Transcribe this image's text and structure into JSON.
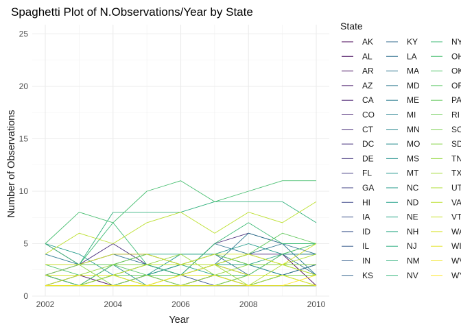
{
  "chart_data": {
    "type": "line",
    "title": "Spaghetti Plot of N.Observations/Year by State",
    "xlabel": "Year",
    "ylabel": "Number of Observations",
    "xlim": [
      2002,
      2010
    ],
    "ylim": [
      0,
      26
    ],
    "x_ticks": [
      2002,
      2004,
      2006,
      2008,
      2010
    ],
    "y_ticks": [
      0,
      5,
      10,
      15,
      20,
      25
    ],
    "grid": true,
    "legend_title": "State",
    "legend_position": "right",
    "colormap": "viridis",
    "x": [
      2002,
      2003,
      2004,
      2005,
      2006,
      2007,
      2008,
      2009,
      2010
    ],
    "series": [
      {
        "name": "AK",
        "values": [
          null,
          null,
          null,
          2,
          null,
          3,
          null,
          4,
          1
        ]
      },
      {
        "name": "AL",
        "values": [
          1,
          2,
          1,
          2,
          1,
          2,
          1,
          2,
          3
        ]
      },
      {
        "name": "AR",
        "values": [
          1,
          1,
          2,
          2,
          3,
          3,
          3,
          3,
          3
        ]
      },
      {
        "name": "AZ",
        "values": [
          2,
          1,
          3,
          3,
          2,
          3,
          2,
          2,
          3
        ]
      },
      {
        "name": "CA",
        "values": [
          1,
          1,
          1,
          1,
          1,
          1,
          1,
          1,
          1
        ]
      },
      {
        "name": "CO",
        "values": [
          2,
          3,
          4,
          4,
          3,
          3,
          4,
          4,
          4
        ]
      },
      {
        "name": "CT",
        "values": [
          5,
          3,
          5,
          3,
          2,
          5,
          6,
          5,
          5
        ]
      },
      {
        "name": "DC",
        "values": [
          null,
          null,
          null,
          null,
          null,
          null,
          null,
          1,
          1
        ]
      },
      {
        "name": "DE",
        "values": [
          1,
          1,
          1,
          1,
          1,
          1,
          1,
          1,
          1
        ]
      },
      {
        "name": "FL",
        "values": [
          1,
          1,
          1,
          1,
          1,
          1,
          1,
          1,
          1
        ]
      },
      {
        "name": "GA",
        "values": [
          1,
          1,
          1,
          2,
          2,
          2,
          2,
          2,
          2
        ]
      },
      {
        "name": "HI",
        "values": [
          null,
          null,
          1,
          1,
          1,
          null,
          1,
          1,
          1
        ]
      },
      {
        "name": "IA",
        "values": [
          null,
          1,
          1,
          1,
          1,
          2,
          1,
          1,
          1
        ]
      },
      {
        "name": "ID",
        "values": [
          2,
          1,
          1,
          2,
          2,
          1,
          2,
          2,
          2
        ]
      },
      {
        "name": "IL",
        "values": [
          2,
          1,
          1,
          1,
          1,
          2,
          1,
          1,
          1
        ]
      },
      {
        "name": "IN",
        "values": [
          2,
          1,
          2,
          2,
          2,
          3,
          2,
          2,
          2
        ]
      },
      {
        "name": "KS",
        "values": [
          1,
          1,
          1,
          1,
          1,
          1,
          1,
          1,
          1
        ]
      },
      {
        "name": "KY",
        "values": [
          1,
          1,
          1,
          1,
          1,
          1,
          1,
          1,
          1
        ]
      },
      {
        "name": "LA",
        "values": [
          3,
          3,
          3,
          4,
          3,
          4,
          2,
          4,
          2
        ]
      },
      {
        "name": "MA",
        "values": [
          3,
          3,
          4,
          3,
          2,
          5,
          4,
          5,
          4
        ]
      },
      {
        "name": "MD",
        "values": [
          4,
          3,
          3,
          3,
          2,
          3,
          6,
          5,
          2
        ]
      },
      {
        "name": "ME",
        "values": [
          1,
          1,
          1,
          1,
          1,
          1,
          1,
          1,
          1
        ]
      },
      {
        "name": "MI",
        "values": [
          2,
          2,
          2,
          3,
          2,
          3,
          3,
          2,
          2
        ]
      },
      {
        "name": "MN",
        "values": [
          1,
          2,
          2,
          3,
          3,
          4,
          3,
          2,
          3
        ]
      },
      {
        "name": "MO",
        "values": [
          1,
          1,
          3,
          1,
          2,
          2,
          1,
          2,
          2
        ]
      },
      {
        "name": "MS",
        "values": [
          2,
          1,
          1,
          2,
          3,
          3,
          4,
          3,
          2
        ]
      },
      {
        "name": "MT",
        "values": [
          1,
          1,
          2,
          1,
          1,
          2,
          1,
          1,
          1
        ]
      },
      {
        "name": "NC",
        "values": [
          5,
          4,
          2,
          2,
          4,
          4,
          5,
          4,
          4
        ]
      },
      {
        "name": "ND",
        "values": [
          1,
          1,
          1,
          1,
          1,
          1,
          1,
          1,
          1
        ]
      },
      {
        "name": "NE",
        "values": [
          1,
          1,
          2,
          2,
          3,
          2,
          2,
          2,
          2
        ]
      },
      {
        "name": "NH",
        "values": [
          null,
          3,
          3,
          4,
          4,
          4,
          3,
          4,
          5
        ]
      },
      {
        "name": "NJ",
        "values": [
          1,
          1,
          3,
          3,
          3,
          3,
          3,
          3,
          3
        ]
      },
      {
        "name": "NM",
        "values": [
          3,
          3,
          8,
          8,
          8,
          9,
          9,
          9,
          7
        ]
      },
      {
        "name": "NV",
        "values": [
          2,
          2,
          2,
          2,
          1,
          1,
          2,
          2,
          2
        ]
      },
      {
        "name": "NY",
        "values": [
          5,
          3,
          7,
          3,
          2,
          5,
          7,
          5,
          5
        ]
      },
      {
        "name": "OH",
        "values": [
          5,
          8,
          7,
          10,
          11,
          9,
          10,
          11,
          11
        ]
      },
      {
        "name": "OK",
        "values": [
          3,
          2,
          2,
          2,
          2,
          2,
          2,
          2,
          1
        ]
      },
      {
        "name": "OR",
        "values": [
          1,
          1,
          3,
          2,
          2,
          3,
          2,
          4,
          5
        ]
      },
      {
        "name": "PA",
        "values": [
          2,
          1,
          2,
          3,
          3,
          3,
          4,
          6,
          5
        ]
      },
      {
        "name": "RI",
        "values": [
          2,
          2,
          2,
          2,
          2,
          2,
          1,
          2,
          2
        ]
      },
      {
        "name": "SC",
        "values": [
          2,
          3,
          3,
          4,
          3,
          4,
          3,
          3,
          2
        ]
      },
      {
        "name": "SD",
        "values": [
          3,
          3,
          1,
          2,
          1,
          1,
          2,
          2,
          2
        ]
      },
      {
        "name": "TN",
        "values": [
          2,
          2,
          3,
          3,
          4,
          2,
          3,
          3,
          3
        ]
      },
      {
        "name": "TX",
        "values": [
          1,
          1,
          1,
          1,
          2,
          3,
          1,
          2,
          1
        ]
      },
      {
        "name": "UT",
        "values": [
          1,
          1,
          2,
          1,
          1,
          2,
          1,
          3,
          4
        ]
      },
      {
        "name": "VA",
        "values": [
          4,
          6,
          5,
          7,
          8,
          6,
          8,
          7,
          9
        ]
      },
      {
        "name": "VT",
        "values": [
          1,
          2,
          2,
          3,
          3,
          3,
          4,
          3,
          2
        ]
      },
      {
        "name": "WA",
        "values": [
          3,
          3,
          4,
          4,
          3,
          4,
          4,
          3,
          5
        ]
      },
      {
        "name": "WI",
        "values": [
          2,
          2,
          2,
          1,
          2,
          3,
          2,
          2,
          1
        ]
      },
      {
        "name": "WV",
        "values": [
          1,
          1,
          1,
          1,
          2,
          2,
          1,
          1,
          1
        ]
      },
      {
        "name": "WY",
        "values": [
          1,
          1,
          1,
          1,
          1,
          1,
          1,
          1,
          2
        ]
      }
    ],
    "highlight_notes": ""
  }
}
